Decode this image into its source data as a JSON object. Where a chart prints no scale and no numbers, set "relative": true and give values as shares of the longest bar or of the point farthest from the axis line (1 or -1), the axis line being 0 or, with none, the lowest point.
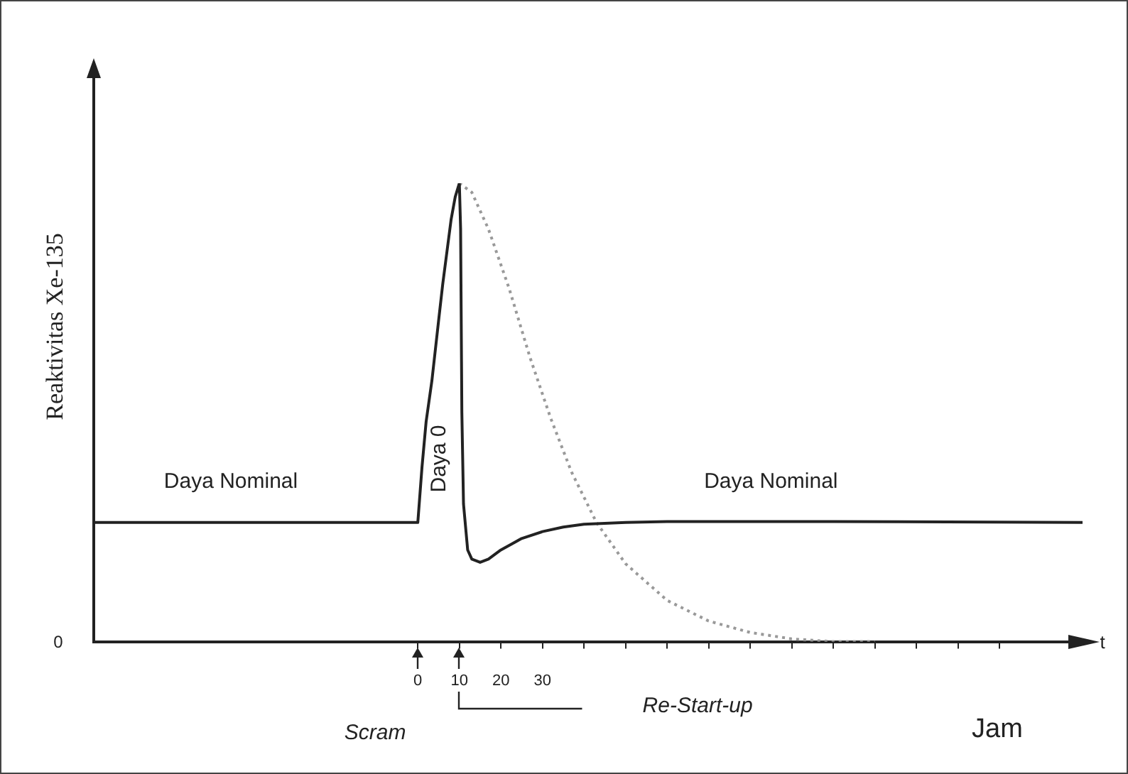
{
  "chart_data": {
    "type": "line",
    "relative": true,
    "ylabel": "Reaktivitas Xe-135",
    "xlabel": "Jam",
    "xlim": [
      -78,
      160
    ],
    "xticks": [
      0,
      10,
      20,
      30,
      {
        "value": 40,
        "label": null
      },
      {
        "value": 50,
        "label": null
      },
      {
        "value": 60,
        "label": null
      },
      {
        "value": 70,
        "label": null
      },
      {
        "value": 80,
        "label": null
      },
      {
        "value": 90,
        "label": null
      },
      {
        "value": 100,
        "label": null
      },
      {
        "value": 110,
        "label": null
      },
      {
        "value": 120,
        "label": null
      },
      {
        "value": 130,
        "label": null
      },
      {
        "value": 140,
        "label": null
      }
    ],
    "grid": false,
    "legend": false,
    "marker": "none",
    "series": [
      {
        "color": "#222222",
        "line_style": "solid",
        "x": [
          -78,
          0,
          1,
          2,
          3.4,
          5,
          6,
          8,
          9,
          10,
          10.3,
          10.6,
          11,
          12,
          13,
          15,
          17,
          20,
          25,
          30,
          35,
          40,
          50,
          60,
          100,
          160
        ],
        "values": [
          0.26,
          0.26,
          0.38,
          0.48,
          0.57,
          0.7,
          0.78,
          0.92,
          0.97,
          1,
          0.9,
          0.5,
          0.3,
          0.2,
          0.18,
          0.173,
          0.18,
          0.2,
          0.225,
          0.24,
          0.25,
          0.256,
          0.26,
          0.262,
          0.262,
          0.26
        ]
      },
      {
        "color": "#999999",
        "line_style": "dotted",
        "x": [
          10,
          13,
          17,
          22,
          27,
          32,
          37,
          43,
          50,
          60,
          70,
          80,
          90,
          100,
          110
        ],
        "values": [
          1,
          0.98,
          0.9,
          0.77,
          0.62,
          0.487,
          0.37,
          0.26,
          0.17,
          0.09,
          0.045,
          0.02,
          0.006,
          0,
          0
        ]
      }
    ],
    "annotations": [
      "Daya Nominal",
      "Daya 0",
      "Daya Nominal",
      "0",
      "t",
      "Scram",
      "Re-Start-up"
    ]
  }
}
